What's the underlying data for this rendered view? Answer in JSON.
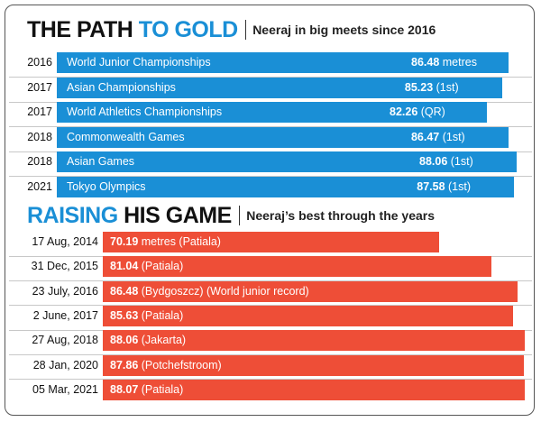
{
  "colors": {
    "gold_section": "#1a8fd6",
    "game_section": "#ee4e37"
  },
  "chart_data": [
    {
      "type": "bar",
      "title": "THE PATH TO GOLD",
      "title_part1": "THE PATH ",
      "title_part2": "TO GOLD",
      "subtitle": "Neeraj in big meets since 2016",
      "unit": "metres",
      "categories": [
        "2016",
        "2017",
        "2017",
        "2018",
        "2018",
        "2021"
      ],
      "events": [
        "World Junior Championships",
        "Asian Championships",
        "World Athletics Championships",
        "Commonwealth Games",
        "Asian Games",
        "Tokyo Olympics"
      ],
      "values": [
        86.48,
        85.23,
        82.26,
        86.47,
        88.06,
        87.58
      ],
      "value_labels": [
        "86.48",
        "85.23",
        "82.26",
        "86.47",
        "88.06",
        "87.58"
      ],
      "notes": [
        "metres",
        "(1st)",
        "(QR)",
        "(1st)",
        "(1st)",
        "(1st)"
      ]
    },
    {
      "type": "bar",
      "title": "RAISING HIS GAME",
      "title_part1": "RAISING ",
      "title_part2": "HIS GAME",
      "subtitle": "Neeraj’s best through the years",
      "unit": "metres",
      "categories": [
        "17 Aug, 2014",
        "31 Dec, 2015",
        "23 July, 2016",
        "2 June, 2017",
        "27 Aug, 2018",
        "28 Jan, 2020",
        "05 Mar, 2021"
      ],
      "values": [
        70.19,
        81.04,
        86.48,
        85.63,
        88.06,
        87.86,
        88.07
      ],
      "value_labels": [
        "70.19",
        "81.04",
        "86.48",
        "85.63",
        "88.06",
        "87.86",
        "88.07"
      ],
      "notes": [
        "metres (Patiala)",
        "(Patiala)",
        "(Bydgoszcz) (World junior record)",
        "(Patiala)",
        "(Jakarta)",
        "(Potchefstroom)",
        "(Patiala)"
      ]
    }
  ]
}
